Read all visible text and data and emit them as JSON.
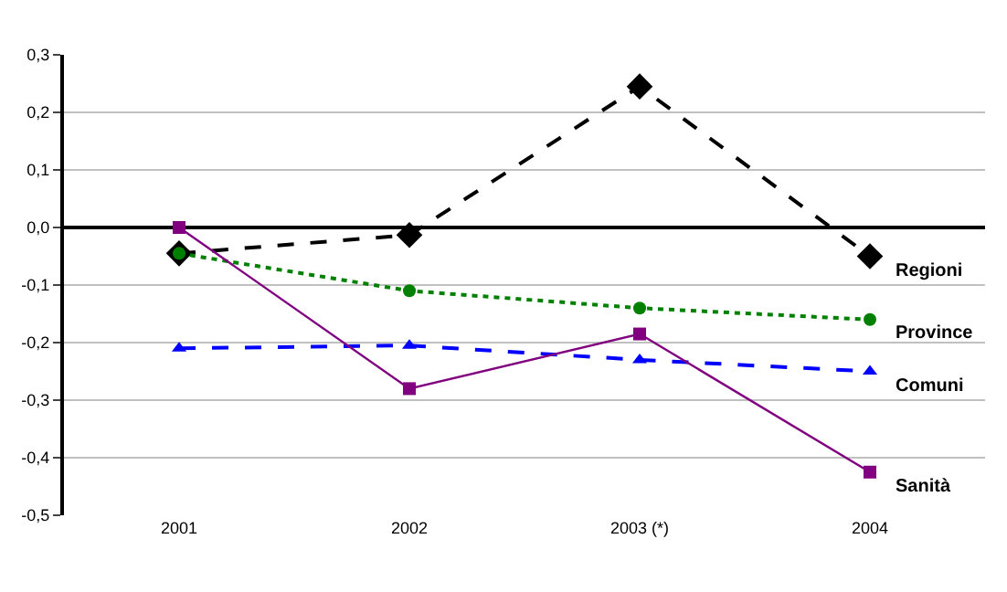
{
  "chart_data": {
    "type": "line",
    "categories": [
      "2001",
      "2002",
      "2003 (*)",
      "2004"
    ],
    "series": [
      {
        "name": "Regioni",
        "color": "#000000",
        "values": [
          -0.045,
          -0.013,
          0.245,
          -0.05
        ],
        "marker": "diamond",
        "line_style": "dashed"
      },
      {
        "name": "Province",
        "color": "#008000",
        "values": [
          -0.045,
          -0.11,
          -0.14,
          -0.16
        ],
        "marker": "circle",
        "line_style": "dotted"
      },
      {
        "name": "Comuni",
        "color": "#0000ff",
        "values": [
          -0.21,
          -0.205,
          -0.23,
          -0.25
        ],
        "marker": "triangle",
        "line_style": "dashed"
      },
      {
        "name": "Sanità",
        "color": "#800080",
        "values": [
          0.0,
          -0.28,
          -0.185,
          -0.425
        ],
        "marker": "square",
        "line_style": "solid"
      }
    ],
    "ylim": [
      -0.5,
      0.3
    ],
    "yticks": [
      {
        "value": -0.5,
        "label": "-0,5"
      },
      {
        "value": -0.4,
        "label": "-0,4"
      },
      {
        "value": -0.3,
        "label": "-0,3"
      },
      {
        "value": -0.2,
        "label": "-0,2"
      },
      {
        "value": -0.1,
        "label": "-0,1"
      },
      {
        "value": 0.0,
        "label": "0,0"
      },
      {
        "value": 0.1,
        "label": "0,1"
      },
      {
        "value": 0.2,
        "label": "0,2"
      },
      {
        "value": 0.3,
        "label": "0,3"
      }
    ],
    "grid": "y",
    "legend": false
  }
}
